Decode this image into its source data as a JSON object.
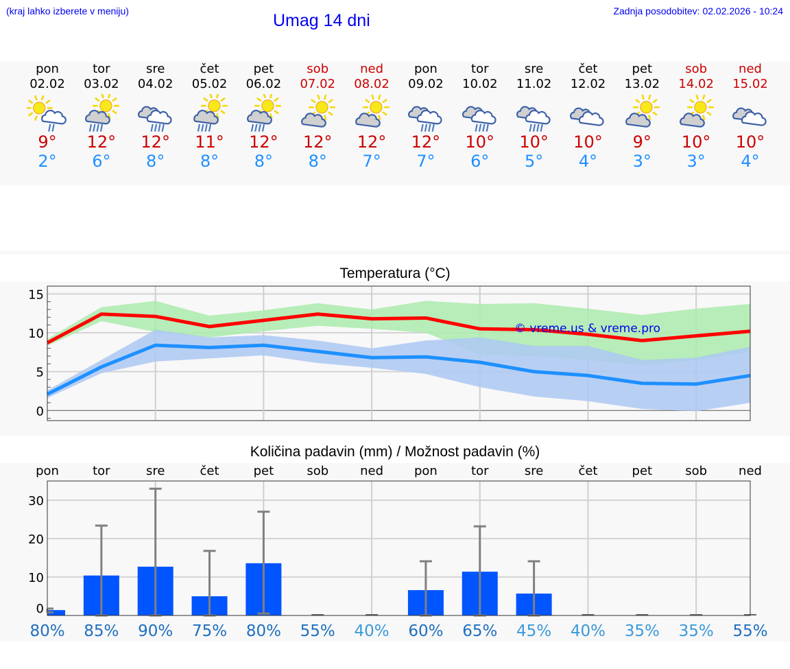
{
  "header": {
    "menu_hint": "(kraj lahko izberete v meniju)",
    "title": "Umag 14 dni",
    "last_update": "Zadnja posodobitev: 02.02.2026 - 10:24"
  },
  "colors": {
    "link_blue": "#0000ee",
    "max_temp": "#cc0000",
    "min_temp": "#1e90ff",
    "max_line": "#ff0000",
    "min_line": "#1e90ff",
    "max_band": "#acebad",
    "min_band": "#adc8f3",
    "bar": "#0055ff",
    "errorbar": "#808080"
  },
  "days": [
    {
      "name": "pon",
      "date": "02.02",
      "icon": "sun-cloud-light-rain-icon",
      "max": "9°",
      "min": "2°",
      "weekend": false
    },
    {
      "name": "tor",
      "date": "03.02",
      "icon": "sun-cloud-rain-icon",
      "max": "12°",
      "min": "6°",
      "weekend": false
    },
    {
      "name": "sre",
      "date": "04.02",
      "icon": "clouds-rain-icon",
      "max": "12°",
      "min": "8°",
      "weekend": false
    },
    {
      "name": "čet",
      "date": "05.02",
      "icon": "sun-cloud-rain-icon",
      "max": "11°",
      "min": "8°",
      "weekend": false
    },
    {
      "name": "pet",
      "date": "06.02",
      "icon": "sun-cloud-rain-icon",
      "max": "12°",
      "min": "8°",
      "weekend": false
    },
    {
      "name": "sob",
      "date": "07.02",
      "icon": "sun-cloud-icon",
      "max": "12°",
      "min": "8°",
      "weekend": true
    },
    {
      "name": "ned",
      "date": "08.02",
      "icon": "sun-cloud-icon",
      "max": "12°",
      "min": "7°",
      "weekend": true
    },
    {
      "name": "pon",
      "date": "09.02",
      "icon": "clouds-rain-icon",
      "max": "12°",
      "min": "7°",
      "weekend": false
    },
    {
      "name": "tor",
      "date": "10.02",
      "icon": "clouds-rain-icon",
      "max": "10°",
      "min": "6°",
      "weekend": false
    },
    {
      "name": "sre",
      "date": "11.02",
      "icon": "clouds-rain-icon",
      "max": "10°",
      "min": "5°",
      "weekend": false
    },
    {
      "name": "čet",
      "date": "12.02",
      "icon": "clouds-icon",
      "max": "10°",
      "min": "4°",
      "weekend": false
    },
    {
      "name": "pet",
      "date": "13.02",
      "icon": "sun-cloud-icon",
      "max": "9°",
      "min": "3°",
      "weekend": false
    },
    {
      "name": "sob",
      "date": "14.02",
      "icon": "sun-cloud-icon",
      "max": "10°",
      "min": "3°",
      "weekend": true
    },
    {
      "name": "ned",
      "date": "15.02",
      "icon": "clouds-icon",
      "max": "10°",
      "min": "4°",
      "weekend": true
    }
  ],
  "chart_data": [
    {
      "type": "line",
      "title": "Temperatura (°C)",
      "xlabel": "",
      "ylabel": "",
      "x": [
        "02.02",
        "03.02",
        "04.02",
        "05.02",
        "06.02",
        "07.02",
        "08.02",
        "09.02",
        "10.02",
        "11.02",
        "12.02",
        "13.02",
        "14.02",
        "15.02"
      ],
      "ylim": [
        -1.3,
        16
      ],
      "yticks": [
        0,
        5,
        10,
        15
      ],
      "grid": true,
      "watermark": "© vreme.us & vreme.pro",
      "series": [
        {
          "name": "max",
          "color": "#ff0000",
          "values": [
            8.7,
            12.4,
            12.1,
            10.8,
            11.6,
            12.4,
            11.8,
            11.9,
            10.5,
            10.4,
            9.8,
            9.0,
            9.6,
            10.2
          ],
          "band_upper": [
            9.2,
            13.3,
            14.1,
            12.2,
            12.9,
            13.8,
            13.0,
            14.1,
            13.7,
            13.8,
            13.1,
            12.3,
            13.1,
            13.7
          ],
          "band_lower": [
            8.3,
            11.5,
            10.1,
            9.4,
            10.2,
            10.9,
            10.5,
            10.0,
            7.2,
            7.0,
            6.5,
            5.8,
            6.5,
            7.5
          ]
        },
        {
          "name": "min",
          "color": "#1e90ff",
          "values": [
            2.1,
            5.6,
            8.4,
            8.1,
            8.4,
            7.6,
            6.8,
            6.9,
            6.2,
            5.0,
            4.5,
            3.5,
            3.4,
            4.5
          ],
          "band_upper": [
            2.6,
            6.5,
            10.4,
            9.4,
            9.7,
            9.0,
            8.0,
            9.0,
            9.4,
            8.3,
            8.3,
            6.5,
            6.8,
            8.2
          ],
          "band_lower": [
            1.6,
            4.8,
            6.3,
            6.7,
            7.1,
            6.1,
            5.5,
            4.7,
            3.0,
            1.8,
            1.2,
            0.2,
            -0.1,
            1.0
          ]
        }
      ]
    },
    {
      "type": "bar",
      "title": "Količina padavin (mm) / Možnost padavin (%)",
      "categories": [
        "pon",
        "tor",
        "sre",
        "čet",
        "pet",
        "sob",
        "ned",
        "pon",
        "tor",
        "sre",
        "čet",
        "pet",
        "sob",
        "ned"
      ],
      "ylim": [
        0,
        35
      ],
      "yticks": [
        0,
        10,
        20,
        30
      ],
      "grid": true,
      "values": [
        1.4,
        10.4,
        12.7,
        5.0,
        13.6,
        0,
        0,
        6.6,
        11.4,
        5.7,
        0,
        0,
        0,
        0
      ],
      "error_upper": [
        1.8,
        23.4,
        33.0,
        16.8,
        27.0,
        0,
        0,
        14.1,
        23.2,
        14.1,
        0,
        0,
        0,
        0
      ],
      "error_lower": [
        0.8,
        0,
        0,
        0,
        0.5,
        0,
        0,
        0,
        0,
        0,
        0,
        0,
        0,
        0
      ],
      "probability_labels": [
        "80%",
        "85%",
        "90%",
        "75%",
        "80%",
        "55%",
        "40%",
        "60%",
        "65%",
        "45%",
        "40%",
        "35%",
        "35%",
        "55%"
      ],
      "probability_colors": [
        "#1f6fbf",
        "#1f6fbf",
        "#1f6fbf",
        "#1f6fbf",
        "#1f6fbf",
        "#1f6fbf",
        "#3a9ad9",
        "#1f6fbf",
        "#1f6fbf",
        "#3a9ad9",
        "#3a9ad9",
        "#3a9ad9",
        "#3a9ad9",
        "#1f6fbf"
      ]
    }
  ]
}
